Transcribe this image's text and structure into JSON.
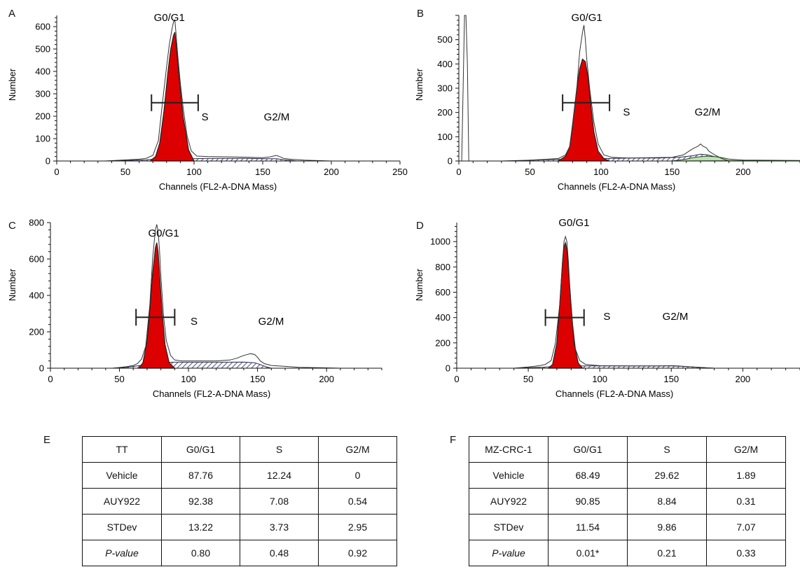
{
  "chart_data": [
    {
      "panel": "A",
      "type": "area",
      "xlabel": "Channels (FL2-A-DNA Mass)",
      "ylabel": "Number",
      "xlim": [
        0,
        250
      ],
      "ylim": [
        0,
        650
      ],
      "xticks": [
        0,
        50,
        100,
        150,
        200,
        250
      ],
      "yticks": [
        0,
        100,
        200,
        300,
        400,
        500,
        600
      ],
      "annotations": [
        "G0/G1",
        "S",
        "G2/M"
      ],
      "series": [
        {
          "x": [
            35,
            60,
            65,
            70,
            74,
            77,
            80,
            82,
            84,
            85,
            86,
            87,
            88,
            90,
            92,
            95,
            98,
            102,
            110,
            130,
            150,
            155,
            160,
            163,
            165,
            170,
            180,
            200
          ],
          "y": [
            0,
            8,
            12,
            25,
            90,
            260,
            420,
            520,
            590,
            620,
            630,
            560,
            480,
            350,
            240,
            110,
            45,
            22,
            20,
            18,
            15,
            18,
            25,
            18,
            12,
            8,
            4,
            0
          ]
        },
        {
          "x": [
            68,
            72,
            75,
            78,
            81,
            83,
            85,
            86,
            87,
            89,
            92,
            96,
            100
          ],
          "y": [
            0,
            20,
            80,
            220,
            400,
            500,
            560,
            575,
            520,
            380,
            200,
            50,
            0
          ]
        },
        {
          "x": [
            40,
            55,
            65,
            70,
            80,
            90,
            100,
            110,
            120,
            130,
            140,
            150,
            160,
            165,
            170,
            175
          ],
          "y": [
            0,
            3,
            5,
            8,
            8,
            8,
            10,
            12,
            12,
            12,
            12,
            10,
            10,
            6,
            3,
            0
          ]
        }
      ],
      "marker": {
        "x1": 69,
        "x2": 103,
        "y": 260
      }
    },
    {
      "panel": "B",
      "type": "area",
      "xlabel": "Channels (FL2-A-DNA Mass)",
      "ylabel": "Number",
      "xlim": [
        0,
        240
      ],
      "ylim": [
        0,
        600
      ],
      "xticks": [
        0,
        50,
        100,
        150,
        200
      ],
      "yticks": [
        0,
        100,
        200,
        300,
        400,
        500
      ],
      "annotations": [
        "G0/G1",
        "S",
        "G2/M"
      ],
      "series": [
        {
          "x": [
            2,
            3,
            4,
            5,
            6,
            7,
            8,
            40,
            70,
            75,
            78,
            80,
            83,
            85,
            87,
            88,
            89,
            90,
            92,
            95,
            98,
            102,
            108,
            120,
            150,
            158,
            163,
            166,
            168,
            170,
            172,
            174,
            176,
            180,
            185,
            190
          ],
          "y": [
            0,
            300,
            650,
            650,
            400,
            0,
            0,
            0,
            10,
            25,
            60,
            140,
            300,
            450,
            530,
            560,
            500,
            420,
            300,
            160,
            70,
            25,
            15,
            12,
            15,
            25,
            45,
            55,
            60,
            70,
            60,
            55,
            40,
            25,
            10,
            0
          ]
        },
        {
          "x": [
            70,
            75,
            78,
            80,
            83,
            85,
            87,
            89,
            91,
            93,
            95,
            98,
            102,
            106
          ],
          "y": [
            0,
            20,
            60,
            150,
            300,
            380,
            420,
            410,
            340,
            220,
            120,
            40,
            10,
            0
          ]
        },
        {
          "x": [
            30,
            60,
            80,
            100,
            120,
            140,
            155,
            165,
            170,
            175,
            180,
            190,
            200
          ],
          "y": [
            0,
            5,
            8,
            10,
            12,
            12,
            15,
            22,
            28,
            25,
            18,
            6,
            0
          ]
        },
        {
          "x": [
            150,
            160,
            165,
            170,
            175,
            180,
            185,
            190,
            200,
            240
          ],
          "y": [
            0,
            8,
            14,
            18,
            20,
            18,
            14,
            8,
            4,
            2
          ]
        }
      ],
      "marker": {
        "x1": 73,
        "x2": 106,
        "y": 240
      }
    },
    {
      "panel": "C",
      "type": "area",
      "xlabel": "Channels (FL2-A-DNA Mass)",
      "ylabel": "Number",
      "xlim": [
        0,
        240
      ],
      "ylim": [
        0,
        800
      ],
      "xticks": [
        0,
        50,
        100,
        150,
        200
      ],
      "yticks": [
        0,
        200,
        400,
        600,
        800
      ],
      "annotations": [
        "G0/G1",
        "S",
        "G2/M"
      ],
      "series": [
        {
          "x": [
            45,
            55,
            60,
            63,
            66,
            69,
            72,
            74,
            76,
            77,
            78,
            79,
            80,
            82,
            84,
            87,
            90,
            95,
            100,
            110,
            120,
            130,
            135,
            140,
            145,
            148,
            150,
            152,
            155,
            160,
            170,
            180,
            200,
            210
          ],
          "y": [
            0,
            8,
            15,
            25,
            50,
            120,
            350,
            600,
            760,
            790,
            750,
            650,
            500,
            280,
            150,
            70,
            45,
            40,
            40,
            40,
            40,
            45,
            55,
            70,
            80,
            75,
            60,
            40,
            25,
            15,
            10,
            5,
            2,
            0
          ]
        },
        {
          "x": [
            64,
            67,
            70,
            72,
            74,
            76,
            77,
            78,
            79,
            81,
            83,
            86,
            90
          ],
          "y": [
            0,
            30,
            150,
            320,
            520,
            660,
            690,
            640,
            520,
            300,
            130,
            30,
            0
          ]
        },
        {
          "x": [
            45,
            55,
            65,
            75,
            90,
            110,
            130,
            140,
            148,
            152,
            156,
            160
          ],
          "y": [
            0,
            5,
            15,
            30,
            33,
            33,
            33,
            34,
            30,
            20,
            8,
            0
          ]
        }
      ],
      "marker": {
        "x1": 62,
        "x2": 90,
        "y": 280
      }
    },
    {
      "panel": "D",
      "type": "area",
      "xlabel": "Channels (FL2-A-DNA Mass)",
      "ylabel": "Number",
      "xlim": [
        0,
        240
      ],
      "ylim": [
        0,
        1150
      ],
      "xticks": [
        0,
        50,
        100,
        150,
        200
      ],
      "yticks": [
        0,
        200,
        400,
        600,
        800,
        1000
      ],
      "annotations": [
        "G0/G1",
        "S",
        "G2/M"
      ],
      "series": [
        {
          "x": [
            40,
            50,
            58,
            62,
            66,
            69,
            72,
            74,
            75,
            76,
            77,
            78,
            79,
            81,
            83,
            86,
            90,
            100,
            120,
            140,
            150,
            155,
            160,
            170,
            180
          ],
          "y": [
            0,
            10,
            20,
            30,
            60,
            200,
            500,
            850,
            1000,
            1040,
            1000,
            850,
            650,
            350,
            150,
            60,
            30,
            20,
            18,
            18,
            20,
            18,
            12,
            6,
            0
          ]
        },
        {
          "x": [
            64,
            67,
            70,
            72,
            74,
            75,
            76,
            77,
            78,
            80,
            82,
            85,
            88
          ],
          "y": [
            0,
            30,
            200,
            500,
            850,
            960,
            990,
            940,
            800,
            480,
            200,
            40,
            0
          ]
        },
        {
          "x": [
            40,
            60,
            70,
            80,
            100,
            120,
            140,
            150,
            160,
            170,
            180
          ],
          "y": [
            0,
            8,
            15,
            18,
            18,
            18,
            18,
            18,
            14,
            6,
            0
          ]
        }
      ],
      "marker": {
        "x1": 62,
        "x2": 89,
        "y": 400
      }
    }
  ],
  "panels": {
    "A": {
      "letter": "A"
    },
    "B": {
      "letter": "B"
    },
    "C": {
      "letter": "C"
    },
    "D": {
      "letter": "D"
    },
    "E": {
      "letter": "E"
    },
    "F": {
      "letter": "F"
    }
  },
  "tables": [
    {
      "panel": "E",
      "header": [
        "TT",
        "G0/G1",
        "S",
        "G2/M"
      ],
      "rows": [
        [
          "Vehicle",
          "87.76",
          "12.24",
          "0"
        ],
        [
          "AUY922",
          "92.38",
          "7.08",
          "0.54"
        ],
        [
          "STDev",
          "13.22",
          "3.73",
          "2.95"
        ],
        [
          "P-value",
          "0.80",
          "0.48",
          "0.92"
        ]
      ]
    },
    {
      "panel": "F",
      "header": [
        "MZ-CRC-1",
        "G0/G1",
        "S",
        "G2/M"
      ],
      "rows": [
        [
          "Vehicle",
          "68.49",
          "29.62",
          "1.89"
        ],
        [
          "AUY922",
          "90.85",
          "8.84",
          "0.31"
        ],
        [
          "STDev",
          "11.54",
          "9.86",
          "7.07"
        ],
        [
          "P-value",
          "0.01*",
          "0.21",
          "0.33"
        ]
      ]
    }
  ],
  "colors": {
    "g1_fill": "#dd0000",
    "g2_fill": "#bfe0b0",
    "s_hatch": "#5a5a8a",
    "line": "#333333"
  }
}
